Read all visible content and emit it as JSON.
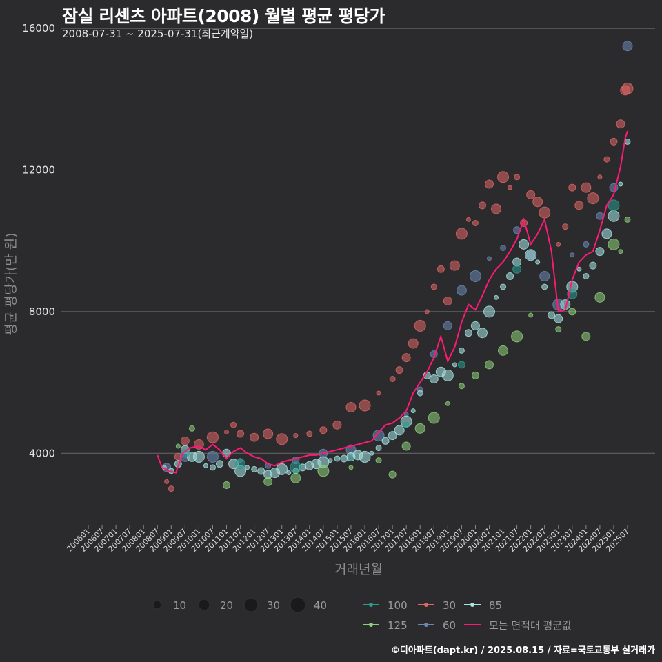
{
  "chart_data": {
    "type": "scatter",
    "title": "잠실 리센츠 아파트(2008) 월별 평균 평당가",
    "subtitle": "2008-07-31 ~ 2025-07-31(최근계약일)",
    "xlabel": "거래년월",
    "ylabel": "평균 평당가(만 원)",
    "ylim": [
      2000,
      16800
    ],
    "yticks": [
      4000,
      8000,
      12000,
      16000
    ],
    "x_range": [
      "2006-01",
      "2025-07"
    ],
    "xtick_labels": [
      "200601",
      "200607",
      "200701",
      "200707",
      "200801",
      "200807",
      "200901",
      "200907",
      "201001",
      "201007",
      "201101",
      "201107",
      "201201",
      "201207",
      "201301",
      "201307",
      "201401",
      "201407",
      "201501",
      "201507",
      "201601",
      "201607",
      "201701",
      "201707",
      "201801",
      "201807",
      "201901",
      "201907",
      "202001",
      "202007",
      "202101",
      "202107",
      "202201",
      "202207",
      "202301",
      "202307",
      "202401",
      "202407",
      "202501",
      "202507"
    ],
    "grid": "horizontal",
    "size_legend": {
      "title": "",
      "values": [
        10,
        20,
        30,
        40
      ]
    },
    "legend": [
      {
        "name": "100",
        "color": "#2a9d8f"
      },
      {
        "name": "30",
        "color": "#e06666"
      },
      {
        "name": "85",
        "color": "#a8e6e6"
      },
      {
        "name": "125",
        "color": "#8fd17a"
      },
      {
        "name": "60",
        "color": "#6b88b5"
      },
      {
        "name": "모든 면적대 평균값",
        "color": "#ff1a75"
      }
    ],
    "series": [
      {
        "name": "30",
        "color": "#e06666",
        "points": [
          [
            "2008-11",
            3200
          ],
          [
            "2009-01",
            3000
          ],
          [
            "2009-04",
            3900
          ],
          [
            "2009-07",
            4350
          ],
          [
            "2010-01",
            4250
          ],
          [
            "2010-07",
            4450
          ],
          [
            "2011-01",
            4600
          ],
          [
            "2011-04",
            4800
          ],
          [
            "2011-07",
            4550
          ],
          [
            "2012-01",
            4450
          ],
          [
            "2012-07",
            4550
          ],
          [
            "2013-01",
            4400
          ],
          [
            "2013-07",
            4500
          ],
          [
            "2014-01",
            4550
          ],
          [
            "2014-07",
            4650
          ],
          [
            "2015-01",
            4800
          ],
          [
            "2015-07",
            5300
          ],
          [
            "2016-01",
            5350
          ],
          [
            "2016-07",
            5700
          ],
          [
            "2017-01",
            6100
          ],
          [
            "2017-04",
            6350
          ],
          [
            "2017-07",
            6700
          ],
          [
            "2017-10",
            7100
          ],
          [
            "2018-01",
            7600
          ],
          [
            "2018-04",
            8000
          ],
          [
            "2018-07",
            8700
          ],
          [
            "2018-10",
            9200
          ],
          [
            "2019-01",
            8300
          ],
          [
            "2019-04",
            9300
          ],
          [
            "2019-07",
            10200
          ],
          [
            "2019-10",
            10600
          ],
          [
            "2020-01",
            10500
          ],
          [
            "2020-04",
            11000
          ],
          [
            "2020-07",
            11600
          ],
          [
            "2020-10",
            10900
          ],
          [
            "2021-01",
            11800
          ],
          [
            "2021-04",
            11500
          ],
          [
            "2021-07",
            11800
          ],
          [
            "2021-10",
            10500
          ],
          [
            "2022-01",
            11300
          ],
          [
            "2022-04",
            11100
          ],
          [
            "2022-07",
            10800
          ],
          [
            "2023-01",
            9900
          ],
          [
            "2023-04",
            10400
          ],
          [
            "2023-07",
            11500
          ],
          [
            "2023-10",
            11000
          ],
          [
            "2024-01",
            11500
          ],
          [
            "2024-04",
            11200
          ],
          [
            "2024-07",
            11800
          ],
          [
            "2024-10",
            12300
          ],
          [
            "2025-01",
            12800
          ],
          [
            "2025-04",
            13300
          ],
          [
            "2025-06",
            14250
          ],
          [
            "2025-07",
            14300
          ]
        ]
      },
      {
        "name": "60",
        "color": "#6b88b5",
        "points": [
          [
            "2008-11",
            3600
          ],
          [
            "2009-07",
            3900
          ],
          [
            "2010-07",
            3900
          ],
          [
            "2011-07",
            3800
          ],
          [
            "2012-07",
            3650
          ],
          [
            "2013-07",
            3800
          ],
          [
            "2014-07",
            4000
          ],
          [
            "2015-07",
            4100
          ],
          [
            "2016-07",
            4500
          ],
          [
            "2017-07",
            5100
          ],
          [
            "2018-01",
            5800
          ],
          [
            "2018-07",
            6800
          ],
          [
            "2019-01",
            7600
          ],
          [
            "2019-07",
            8600
          ],
          [
            "2020-01",
            9000
          ],
          [
            "2020-07",
            9500
          ],
          [
            "2021-01",
            9800
          ],
          [
            "2021-07",
            10300
          ],
          [
            "2022-01",
            9600
          ],
          [
            "2022-07",
            9000
          ],
          [
            "2023-01",
            8200
          ],
          [
            "2023-07",
            9600
          ],
          [
            "2024-01",
            9900
          ],
          [
            "2024-07",
            10700
          ],
          [
            "2025-01",
            11500
          ],
          [
            "2025-07",
            15500
          ]
        ]
      },
      {
        "name": "85",
        "color": "#a8e6e6",
        "points": [
          [
            "2008-10",
            3600
          ],
          [
            "2009-01",
            3500
          ],
          [
            "2009-04",
            3700
          ],
          [
            "2009-07",
            4100
          ],
          [
            "2009-10",
            3900
          ],
          [
            "2010-01",
            3900
          ],
          [
            "2010-04",
            3650
          ],
          [
            "2010-07",
            3600
          ],
          [
            "2010-10",
            3700
          ],
          [
            "2011-01",
            4000
          ],
          [
            "2011-04",
            3700
          ],
          [
            "2011-07",
            3500
          ],
          [
            "2011-10",
            3600
          ],
          [
            "2012-01",
            3550
          ],
          [
            "2012-04",
            3500
          ],
          [
            "2012-07",
            3400
          ],
          [
            "2012-10",
            3450
          ],
          [
            "2013-01",
            3550
          ],
          [
            "2013-04",
            3450
          ],
          [
            "2013-07",
            3500
          ],
          [
            "2013-10",
            3600
          ],
          [
            "2014-01",
            3650
          ],
          [
            "2014-04",
            3700
          ],
          [
            "2014-07",
            3750
          ],
          [
            "2014-10",
            3800
          ],
          [
            "2015-01",
            3850
          ],
          [
            "2015-04",
            3850
          ],
          [
            "2015-07",
            3900
          ],
          [
            "2015-10",
            3950
          ],
          [
            "2016-01",
            3900
          ],
          [
            "2016-04",
            4000
          ],
          [
            "2016-07",
            4150
          ],
          [
            "2016-10",
            4350
          ],
          [
            "2017-01",
            4500
          ],
          [
            "2017-04",
            4650
          ],
          [
            "2017-07",
            4900
          ],
          [
            "2017-10",
            5200
          ],
          [
            "2018-01",
            5700
          ],
          [
            "2018-04",
            6200
          ],
          [
            "2018-07",
            6100
          ],
          [
            "2018-10",
            6300
          ],
          [
            "2019-01",
            6200
          ],
          [
            "2019-04",
            6500
          ],
          [
            "2019-07",
            6900
          ],
          [
            "2019-10",
            7400
          ],
          [
            "2020-01",
            7600
          ],
          [
            "2020-04",
            7400
          ],
          [
            "2020-07",
            8000
          ],
          [
            "2020-10",
            8400
          ],
          [
            "2021-01",
            8700
          ],
          [
            "2021-04",
            9000
          ],
          [
            "2021-07",
            9400
          ],
          [
            "2021-10",
            9900
          ],
          [
            "2022-01",
            9600
          ],
          [
            "2022-04",
            9400
          ],
          [
            "2022-07",
            8700
          ],
          [
            "2022-10",
            7900
          ],
          [
            "2023-01",
            7800
          ],
          [
            "2023-04",
            8200
          ],
          [
            "2023-07",
            8700
          ],
          [
            "2023-10",
            9200
          ],
          [
            "2024-01",
            9000
          ],
          [
            "2024-04",
            9300
          ],
          [
            "2024-07",
            9700
          ],
          [
            "2024-10",
            10200
          ],
          [
            "2025-01",
            10700
          ],
          [
            "2025-04",
            11600
          ],
          [
            "2025-07",
            12800
          ]
        ]
      },
      {
        "name": "100",
        "color": "#2a9d8f",
        "points": [
          [
            "2009-07",
            4000
          ],
          [
            "2011-07",
            3700
          ],
          [
            "2013-07",
            3600
          ],
          [
            "2015-07",
            3850
          ],
          [
            "2017-07",
            4800
          ],
          [
            "2019-07",
            6500
          ],
          [
            "2021-07",
            9200
          ],
          [
            "2023-07",
            8500
          ],
          [
            "2025-01",
            11000
          ]
        ]
      },
      {
        "name": "125",
        "color": "#8fd17a",
        "points": [
          [
            "2009-04",
            4200
          ],
          [
            "2009-10",
            4700
          ],
          [
            "2011-01",
            3100
          ],
          [
            "2012-07",
            3200
          ],
          [
            "2013-07",
            3300
          ],
          [
            "2014-07",
            3500
          ],
          [
            "2015-07",
            3600
          ],
          [
            "2016-07",
            3800
          ],
          [
            "2017-01",
            3400
          ],
          [
            "2017-07",
            4200
          ],
          [
            "2018-01",
            4700
          ],
          [
            "2018-07",
            5000
          ],
          [
            "2019-01",
            5400
          ],
          [
            "2019-07",
            5900
          ],
          [
            "2020-01",
            6200
          ],
          [
            "2020-07",
            6500
          ],
          [
            "2021-01",
            6900
          ],
          [
            "2021-07",
            7300
          ],
          [
            "2022-01",
            7900
          ],
          [
            "2023-01",
            7500
          ],
          [
            "2023-07",
            8000
          ],
          [
            "2024-01",
            7300
          ],
          [
            "2024-07",
            8400
          ],
          [
            "2025-01",
            9900
          ],
          [
            "2025-04",
            9700
          ],
          [
            "2025-07",
            10600
          ]
        ]
      }
    ],
    "mean_line": {
      "name": "모든 면적대 평균값",
      "color": "#ff1a75",
      "points": [
        [
          "2008-07",
          3950
        ],
        [
          "2008-09",
          3600
        ],
        [
          "2008-12",
          3500
        ],
        [
          "2009-03",
          3450
        ],
        [
          "2009-06",
          4000
        ],
        [
          "2009-09",
          4150
        ],
        [
          "2010-01",
          4200
        ],
        [
          "2010-04",
          4100
        ],
        [
          "2010-07",
          4250
        ],
        [
          "2010-10",
          4100
        ],
        [
          "2011-01",
          3850
        ],
        [
          "2011-04",
          4050
        ],
        [
          "2011-07",
          4150
        ],
        [
          "2011-10",
          4000
        ],
        [
          "2012-01",
          3900
        ],
        [
          "2012-04",
          3850
        ],
        [
          "2012-07",
          3700
        ],
        [
          "2012-10",
          3650
        ],
        [
          "2013-01",
          3750
        ],
        [
          "2013-04",
          3800
        ],
        [
          "2013-07",
          3850
        ],
        [
          "2013-10",
          3900
        ],
        [
          "2014-01",
          3950
        ],
        [
          "2014-04",
          3950
        ],
        [
          "2014-07",
          4000
        ],
        [
          "2014-10",
          4050
        ],
        [
          "2015-01",
          4100
        ],
        [
          "2015-04",
          4150
        ],
        [
          "2015-07",
          4200
        ],
        [
          "2015-10",
          4250
        ],
        [
          "2016-01",
          4300
        ],
        [
          "2016-04",
          4350
        ],
        [
          "2016-07",
          4600
        ],
        [
          "2016-10",
          4800
        ],
        [
          "2017-01",
          4850
        ],
        [
          "2017-04",
          5000
        ],
        [
          "2017-07",
          5200
        ],
        [
          "2017-10",
          5700
        ],
        [
          "2018-01",
          6000
        ],
        [
          "2018-04",
          6300
        ],
        [
          "2018-07",
          6700
        ],
        [
          "2018-10",
          7300
        ],
        [
          "2019-01",
          6600
        ],
        [
          "2019-04",
          7000
        ],
        [
          "2019-07",
          7700
        ],
        [
          "2019-10",
          8200
        ],
        [
          "2020-01",
          8050
        ],
        [
          "2020-04",
          8450
        ],
        [
          "2020-07",
          8900
        ],
        [
          "2020-10",
          9200
        ],
        [
          "2021-01",
          9400
        ],
        [
          "2021-04",
          9700
        ],
        [
          "2021-07",
          10050
        ],
        [
          "2021-10",
          10600
        ],
        [
          "2022-01",
          9900
        ],
        [
          "2022-04",
          10200
        ],
        [
          "2022-07",
          10600
        ],
        [
          "2022-10",
          9700
        ],
        [
          "2023-01",
          8000
        ],
        [
          "2023-04",
          8050
        ],
        [
          "2023-07",
          8900
        ],
        [
          "2023-10",
          9400
        ],
        [
          "2024-01",
          9600
        ],
        [
          "2024-04",
          9700
        ],
        [
          "2024-07",
          10300
        ],
        [
          "2024-10",
          11000
        ],
        [
          "2025-01",
          11300
        ],
        [
          "2025-04",
          12100
        ],
        [
          "2025-06",
          12900
        ],
        [
          "2025-07",
          13100
        ]
      ]
    }
  },
  "credit": "©디아파트(dapt.kr) / 2025.08.15 / 자료=국토교통부 실거래가"
}
